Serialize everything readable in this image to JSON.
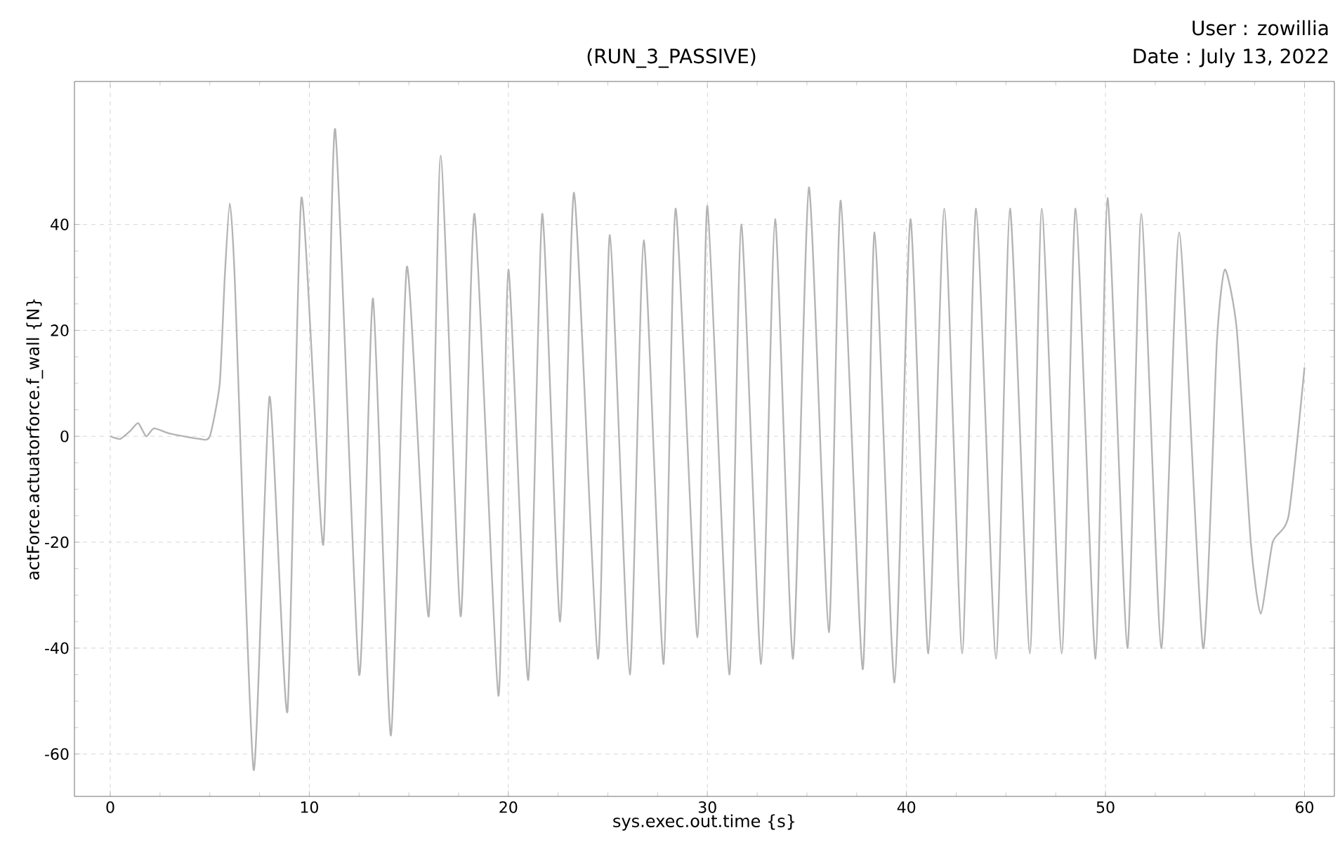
{
  "chart_data": {
    "type": "line",
    "subtitle": "(RUN_3_PASSIVE)",
    "xlabel": "sys.exec.out.time {s}",
    "ylabel": "actForce.actuatorforce.f_wall {N}",
    "annotations": [
      "User : zowillia",
      "Date : July 13, 2022"
    ],
    "x": [
      0,
      0.5,
      1.0,
      1.4,
      1.8,
      2.2,
      3.0,
      4.5,
      5.0,
      5.5,
      5.75,
      6.0,
      6.25,
      7.2,
      8.0,
      8.9,
      9.6,
      10.7,
      11.3,
      12.5,
      13.2,
      14.1,
      14.9,
      16.0,
      16.6,
      17.6,
      18.3,
      19.5,
      20.0,
      21.0,
      21.7,
      22.6,
      23.3,
      24.5,
      25.1,
      26.1,
      26.8,
      27.8,
      28.4,
      29.5,
      30.0,
      31.1,
      31.7,
      32.7,
      33.4,
      34.3,
      35.1,
      36.1,
      36.7,
      37.8,
      38.4,
      39.4,
      40.2,
      41.1,
      41.9,
      42.8,
      43.5,
      44.5,
      45.2,
      46.2,
      46.8,
      47.8,
      48.5,
      49.5,
      50.1,
      51.1,
      51.8,
      52.8,
      53.7,
      54.9,
      55.6,
      56.0,
      56.6,
      57.3,
      57.8,
      58.4,
      59.2,
      60.0
    ],
    "series": [
      {
        "color": "#b4b4b4",
        "values": [
          0,
          -0.5,
          1,
          2.5,
          0,
          1.5,
          0.5,
          -0.5,
          0,
          10,
          30,
          44,
          30,
          -63,
          7.5,
          -52,
          45,
          -20.5,
          58,
          -45,
          26,
          -56.5,
          32,
          -34,
          53,
          -34,
          42,
          -49,
          31.5,
          -46,
          42,
          -35,
          46,
          -42,
          38,
          -45,
          37,
          -43,
          43,
          -38,
          43.5,
          -45,
          40,
          -43,
          41,
          -42,
          47,
          -37,
          44.5,
          -44,
          38.5,
          -46.5,
          41,
          -41,
          43,
          -41,
          43,
          -42,
          43,
          -41,
          43,
          -41,
          43,
          -42,
          45,
          -40,
          42,
          -40,
          38.5,
          -40,
          18,
          31.5,
          20,
          -20,
          -33.5,
          -20,
          -15,
          13
        ]
      }
    ],
    "xlim": [
      -1.8,
      61.5
    ],
    "ylim": [
      -68,
      67
    ],
    "xticks": [
      0,
      10,
      20,
      30,
      40,
      50,
      60
    ],
    "yticks": [
      -60,
      -40,
      -20,
      0,
      20,
      40
    ],
    "grid": true
  }
}
